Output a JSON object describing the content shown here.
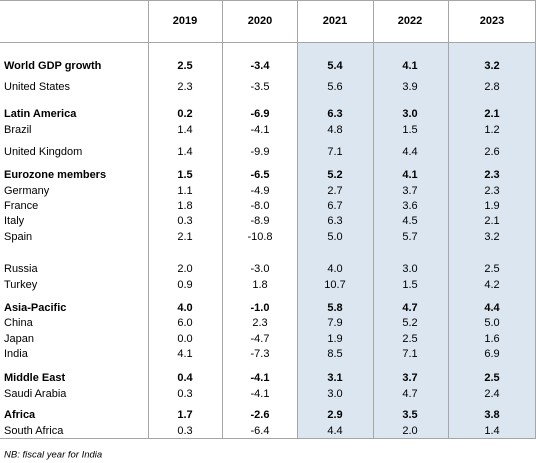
{
  "table": {
    "header": [
      "2019",
      "2020",
      "2021",
      "2022",
      "2023"
    ],
    "rows": [
      [
        "World GDP growth",
        "2.5",
        "-3.4",
        "5.4",
        "4.1",
        "3.2"
      ],
      [
        "United States",
        "2.3",
        "-3.5",
        "5.6",
        "3.9",
        "2.8"
      ],
      [
        "Latin America",
        "0.2",
        "-6.9",
        "6.3",
        "3.0",
        "2.1"
      ],
      [
        "Brazil",
        "1.4",
        "-4.1",
        "4.8",
        "1.5",
        "1.2"
      ],
      [
        "United Kingdom",
        "1.4",
        "-9.9",
        "7.1",
        "4.4",
        "2.6"
      ],
      [
        "Eurozone members",
        "1.5",
        "-6.5",
        "5.2",
        "4.1",
        "2.3"
      ],
      [
        "Germany",
        "1.1",
        "-4.9",
        "2.7",
        "3.7",
        "2.3"
      ],
      [
        "France",
        "1.8",
        "-8.0",
        "6.7",
        "3.6",
        "1.9"
      ],
      [
        "Italy",
        "0.3",
        "-8.9",
        "6.3",
        "4.5",
        "2.1"
      ],
      [
        "Spain",
        "2.1",
        "-10.8",
        "5.0",
        "5.7",
        "3.2"
      ],
      [
        "Russia",
        "2.0",
        "-3.0",
        "4.0",
        "3.0",
        "2.5"
      ],
      [
        "Turkey",
        "0.9",
        "1.8",
        "10.7",
        "1.5",
        "4.2"
      ],
      [
        "Asia-Pacific",
        "4.0",
        "-1.0",
        "5.8",
        "4.7",
        "4.4"
      ],
      [
        "China",
        "6.0",
        "2.3",
        "7.9",
        "5.2",
        "5.0"
      ],
      [
        "Japan",
        "0.0",
        "-4.7",
        "1.9",
        "2.5",
        "1.6"
      ],
      [
        "India",
        "4.1",
        "-7.3",
        "8.5",
        "7.1",
        "6.9"
      ],
      [
        "Middle East",
        "0.4",
        "-4.1",
        "3.1",
        "3.7",
        "2.5"
      ],
      [
        "Saudi Arabia",
        "0.3",
        "-4.1",
        "3.0",
        "4.7",
        "2.4"
      ],
      [
        "Africa",
        "1.7",
        "-2.6",
        "2.9",
        "3.5",
        "3.8"
      ],
      [
        "South Africa",
        "0.3",
        "-6.4",
        "4.4",
        "2.0",
        "1.4"
      ]
    ],
    "note": "NB: fiscal year for India"
  }
}
